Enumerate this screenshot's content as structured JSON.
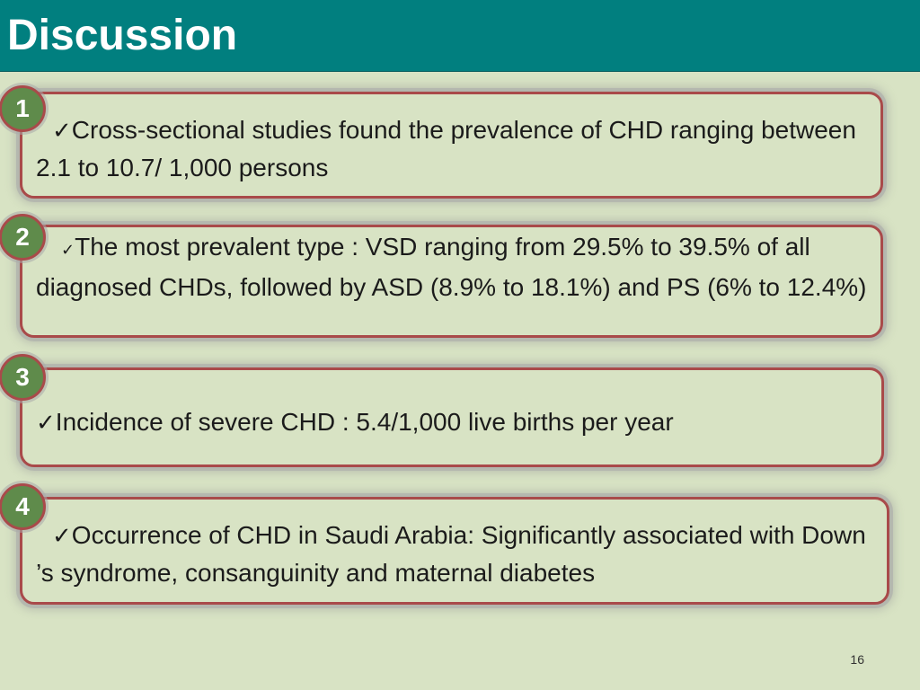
{
  "slide": {
    "title": "Discussion",
    "page_number": "16",
    "colors": {
      "title_bar": "#017f7f",
      "background": "#d8e3c4",
      "card_border": "#a94a4a",
      "badge_fill": "#5f8b4b"
    }
  },
  "points": [
    {
      "number": "1",
      "check": "✓",
      "text": "Cross-sectional studies found the prevalence of CHD ranging between 2.1 to 10.7/ 1,000 persons"
    },
    {
      "number": "2",
      "check": "✓",
      "text": "The most prevalent type : VSD ranging from 29.5% to 39.5% of all diagnosed CHDs, followed by ASD (8.9% to 18.1%) and PS  (6% to 12.4%)"
    },
    {
      "number": "3",
      "check": "✓",
      "text": "Incidence of severe CHD : 5.4/1,000 live births per year"
    },
    {
      "number": "4",
      "check": "✓",
      "text": "Occurrence of CHD in Saudi Arabia: Significantly associated with Down ’s syndrome, consanguinity and maternal diabetes"
    }
  ]
}
